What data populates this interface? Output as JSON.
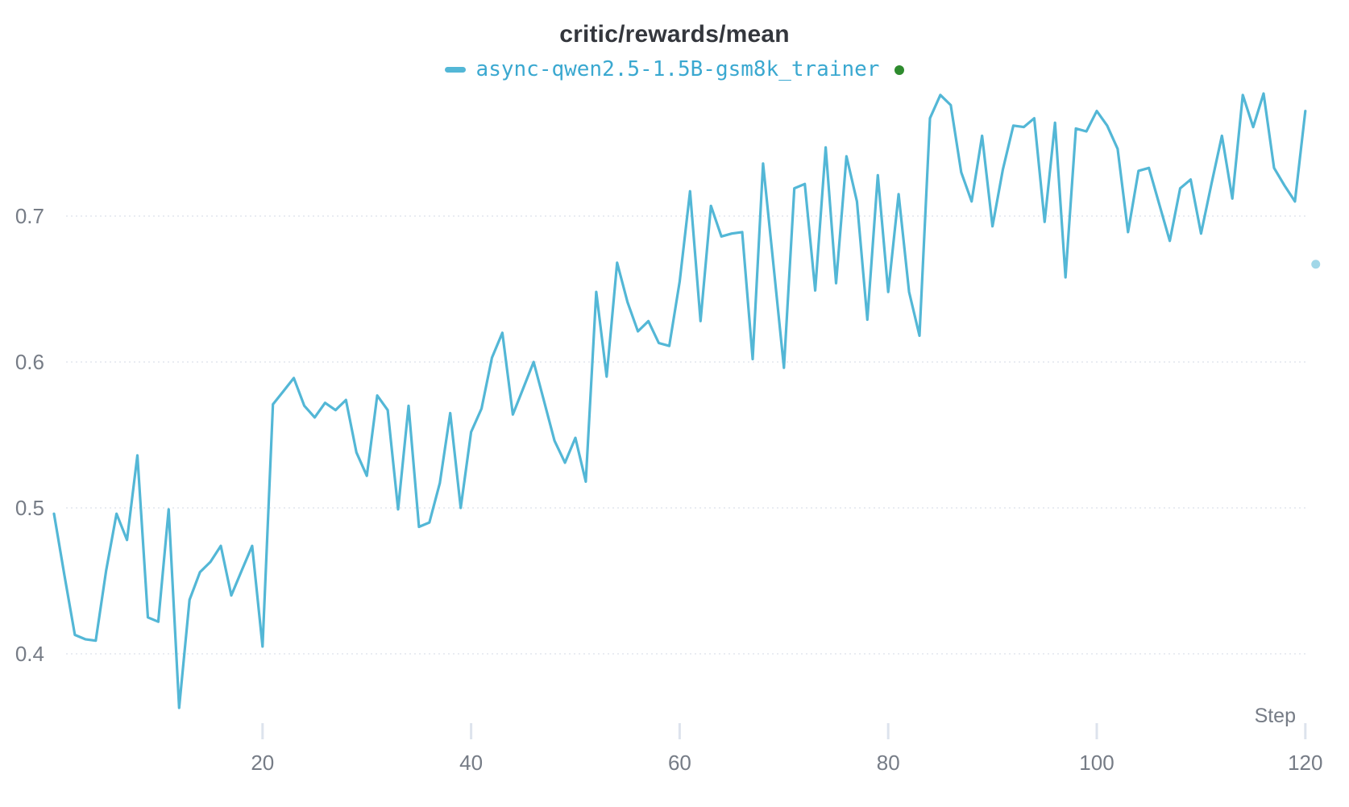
{
  "header": {
    "title": "critic/rewards/mean",
    "legend": [
      {
        "run_name": "async-qwen2.5-1.5B-gsm8k_trainer",
        "status": "running-dot"
      }
    ]
  },
  "axes": {
    "x_label": "Step",
    "x_tick_labels": [
      "20",
      "40",
      "60",
      "80",
      "100",
      "120"
    ],
    "y_tick_labels": [
      "0.7",
      "0.6",
      "0.5",
      "0.4"
    ]
  },
  "colors": {
    "line": "#53b7d6",
    "legend_text": "#3aa8d0",
    "status_dot_green": "#2e8b2e",
    "latest_point_dot": "#53b7d6",
    "title_text": "#34373d",
    "axis_text": "#767c86",
    "gridline": "#e2e6ed",
    "tick_mark": "#dde3ed",
    "background": "#ffffff"
  },
  "chart_data": {
    "type": "line",
    "title": "critic/rewards/mean",
    "xlabel": "Step",
    "ylabel": "",
    "x_ticks": [
      20,
      40,
      60,
      80,
      100,
      120
    ],
    "y_gridlines": [
      0.4,
      0.5,
      0.6,
      0.7
    ],
    "xlim": [
      0,
      124
    ],
    "ylim": [
      0.345,
      0.8
    ],
    "grid": true,
    "legend_position": "top-center",
    "series": [
      {
        "name": "async-qwen2.5-1.5B-gsm8k_trainer",
        "x_start": 0,
        "x_step_increment": 1,
        "x_end": 120,
        "values": [
          0.496,
          0.454,
          0.413,
          0.41,
          0.409,
          0.457,
          0.496,
          0.478,
          0.536,
          0.425,
          0.422,
          0.499,
          0.363,
          0.437,
          0.456,
          0.463,
          0.474,
          0.44,
          0.457,
          0.474,
          0.405,
          0.571,
          0.58,
          0.589,
          0.57,
          0.562,
          0.572,
          0.567,
          0.574,
          0.538,
          0.522,
          0.577,
          0.567,
          0.499,
          0.57,
          0.487,
          0.49,
          0.517,
          0.565,
          0.5,
          0.552,
          0.568,
          0.603,
          0.62,
          0.564,
          0.582,
          0.6,
          0.573,
          0.546,
          0.531,
          0.548,
          0.518,
          0.648,
          0.59,
          0.668,
          0.641,
          0.621,
          0.628,
          0.613,
          0.611,
          0.655,
          0.717,
          0.628,
          0.707,
          0.686,
          0.688,
          0.689,
          0.602,
          0.736,
          0.666,
          0.596,
          0.719,
          0.722,
          0.649,
          0.747,
          0.654,
          0.741,
          0.71,
          0.629,
          0.728,
          0.648,
          0.715,
          0.648,
          0.618,
          0.767,
          0.783,
          0.776,
          0.73,
          0.71,
          0.755,
          0.693,
          0.732,
          0.762,
          0.761,
          0.767,
          0.696,
          0.764,
          0.658,
          0.76,
          0.758,
          0.772,
          0.762,
          0.746,
          0.689,
          0.731,
          0.733,
          0.708,
          0.683,
          0.719,
          0.725,
          0.688,
          0.722,
          0.755,
          0.712,
          0.783,
          0.761,
          0.784,
          0.733,
          0.721,
          0.71,
          0.772
        ]
      }
    ],
    "latest_point": {
      "step": 121,
      "value": 0.667,
      "style": "detached-faded-dot"
    }
  }
}
